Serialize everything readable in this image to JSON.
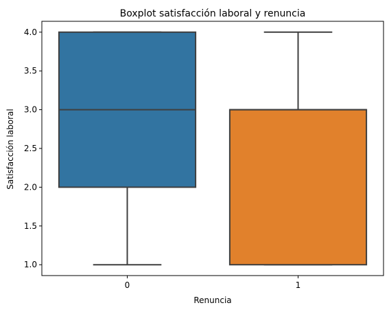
{
  "chart_data": {
    "type": "box",
    "title": "Boxplot satisfacción laboral y renuncia",
    "xlabel": "Renuncia",
    "ylabel": "Satisfacción laboral",
    "ylim": [
      0.86,
      4.14
    ],
    "y_ticks": [
      "1.0",
      "1.5",
      "2.0",
      "2.5",
      "3.0",
      "3.5",
      "4.0"
    ],
    "y_tick_values": [
      1.0,
      1.5,
      2.0,
      2.5,
      3.0,
      3.5,
      4.0
    ],
    "grid": false,
    "categories": [
      "0",
      "1"
    ],
    "boxes": [
      {
        "category": "0",
        "whisker_low": 1.0,
        "q1": 2.0,
        "median": 3.0,
        "q3": 4.0,
        "whisker_high": 4.0,
        "color": "#3274a1"
      },
      {
        "category": "1",
        "whisker_low": 1.0,
        "q1": 1.0,
        "median": 3.0,
        "q3": 3.0,
        "whisker_high": 4.0,
        "color": "#e1812c"
      }
    ]
  }
}
